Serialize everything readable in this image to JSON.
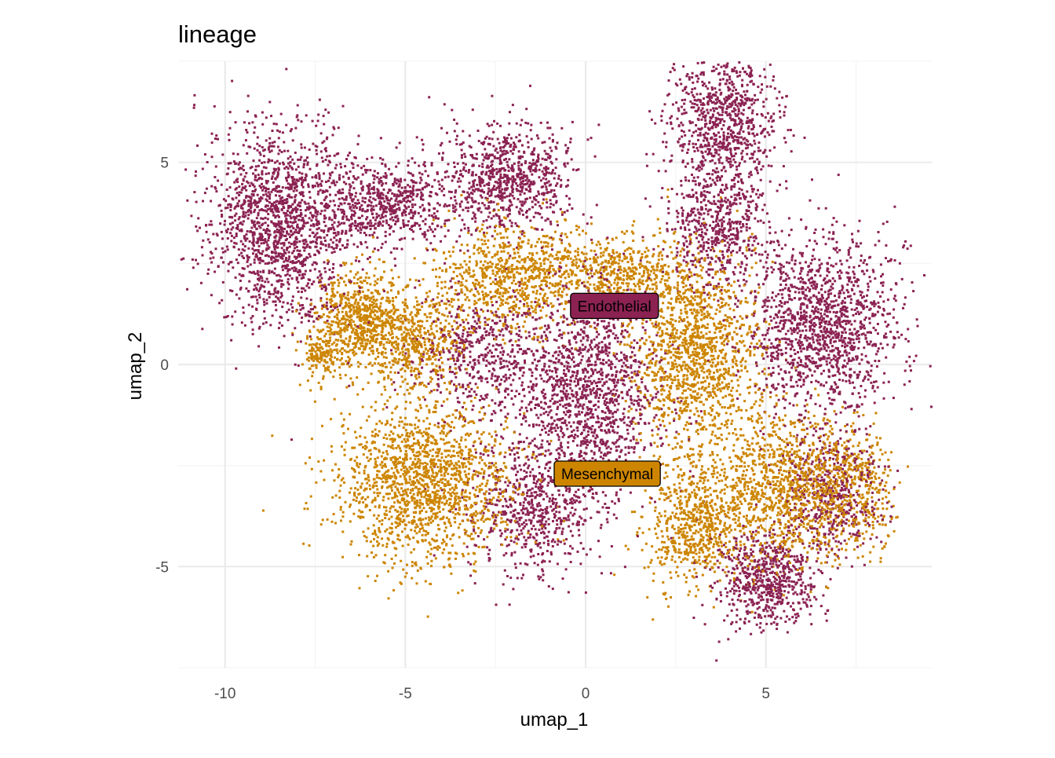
{
  "chart_data": {
    "type": "scatter",
    "title": "lineage",
    "xlabel": "umap_1",
    "ylabel": "umap_2",
    "xlim": [
      -11.3,
      9.6
    ],
    "ylim": [
      -7.5,
      7.5
    ],
    "x_ticks": [
      -10,
      -5,
      0,
      5
    ],
    "x_tick_labels": [
      "-10",
      "-5",
      "0",
      "5"
    ],
    "y_ticks": [
      -5,
      0,
      5
    ],
    "y_tick_labels": [
      "-5",
      "0",
      "5"
    ],
    "grid": true,
    "legend": "none",
    "series": [
      {
        "name": "Endothelial",
        "color": "#8B2252",
        "label_position": [
          0.8,
          1.45
        ],
        "regions": [
          {
            "center": [
              -8.5,
              3.5
            ],
            "spread": [
              1.3,
              1.6
            ],
            "weight": 10
          },
          {
            "center": [
              -5.5,
              4.0
            ],
            "spread": [
              1.2,
              0.7
            ],
            "weight": 4
          },
          {
            "center": [
              -2.2,
              4.6
            ],
            "spread": [
              1.2,
              0.9
            ],
            "weight": 5
          },
          {
            "center": [
              3.8,
              6.0
            ],
            "spread": [
              1.0,
              1.4
            ],
            "weight": 6
          },
          {
            "center": [
              3.6,
              3.5
            ],
            "spread": [
              0.9,
              1.0
            ],
            "weight": 3
          },
          {
            "center": [
              6.5,
              1.0
            ],
            "spread": [
              1.4,
              1.5
            ],
            "weight": 9
          },
          {
            "center": [
              0.0,
              -0.7
            ],
            "spread": [
              1.3,
              1.8
            ],
            "weight": 9
          },
          {
            "center": [
              -1.5,
              -3.5
            ],
            "spread": [
              1.2,
              1.1
            ],
            "weight": 4
          },
          {
            "center": [
              5.0,
              -5.3
            ],
            "spread": [
              1.0,
              0.8
            ],
            "weight": 4
          },
          {
            "center": [
              6.8,
              -3.2
            ],
            "spread": [
              1.0,
              1.0
            ],
            "weight": 3
          },
          {
            "center": [
              -3.0,
              0.3
            ],
            "spread": [
              1.2,
              1.0
            ],
            "weight": 3
          }
        ]
      },
      {
        "name": "Mesenchymal",
        "color": "#CD8500",
        "label_position": [
          0.6,
          -2.7
        ],
        "regions": [
          {
            "center": [
              -4.5,
              -2.8
            ],
            "spread": [
              1.6,
              1.4
            ],
            "weight": 10
          },
          {
            "center": [
              -6.3,
              1.2
            ],
            "spread": [
              0.8,
              0.8
            ],
            "weight": 4
          },
          {
            "center": [
              -4.8,
              0.6
            ],
            "spread": [
              0.9,
              0.8
            ],
            "weight": 3
          },
          {
            "center": [
              -2.0,
              2.2
            ],
            "spread": [
              1.5,
              0.9
            ],
            "weight": 5
          },
          {
            "center": [
              3.0,
              0.3
            ],
            "spread": [
              1.2,
              1.6
            ],
            "weight": 8
          },
          {
            "center": [
              5.5,
              -3.0
            ],
            "spread": [
              1.4,
              1.2
            ],
            "weight": 7
          },
          {
            "center": [
              3.0,
              -4.0
            ],
            "spread": [
              0.9,
              1.0
            ],
            "weight": 4
          },
          {
            "center": [
              1.0,
              2.3
            ],
            "spread": [
              1.3,
              0.6
            ],
            "weight": 3
          },
          {
            "center": [
              -7.3,
              0.3
            ],
            "spread": [
              0.4,
              0.4
            ],
            "weight": 1
          },
          {
            "center": [
              7.5,
              -3.0
            ],
            "spread": [
              0.7,
              1.0
            ],
            "weight": 2
          }
        ]
      }
    ]
  }
}
